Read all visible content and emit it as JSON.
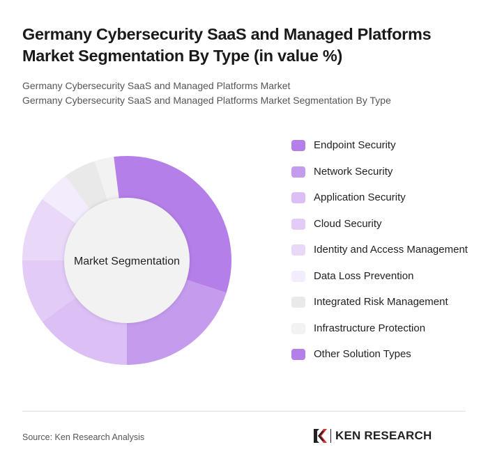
{
  "title": "Germany Cybersecurity SaaS and Managed Platforms Market Segmentation By Type (in value %)",
  "subtitle1": "Germany Cybersecurity SaaS and Managed Platforms Market",
  "subtitle2": "Germany Cybersecurity SaaS and Managed Platforms Market Segmentation By Type",
  "chart_data": {
    "type": "pie",
    "variant": "donut",
    "center_label": "Market Segmentation",
    "legend_position": "right",
    "categories": [
      "Endpoint Security",
      "Network Security",
      "Application Security",
      "Cloud Security",
      "Identity and Access Management",
      "Data Loss Prevention",
      "Integrated Risk Management",
      "Infrastructure Protection",
      "Other Solution Types"
    ],
    "values": [
      30,
      20,
      15,
      10,
      10,
      5,
      5,
      3,
      2
    ],
    "colors": [
      "#b57fe9",
      "#c59bed",
      "#dbbff5",
      "#e2cbf7",
      "#ead8f9",
      "#f3ecfc",
      "#e9e9e9",
      "#f2f2f2",
      "#b57fe9"
    ]
  },
  "source": "Source: Ken Research Analysis",
  "logo": "KEN RESEARCH"
}
